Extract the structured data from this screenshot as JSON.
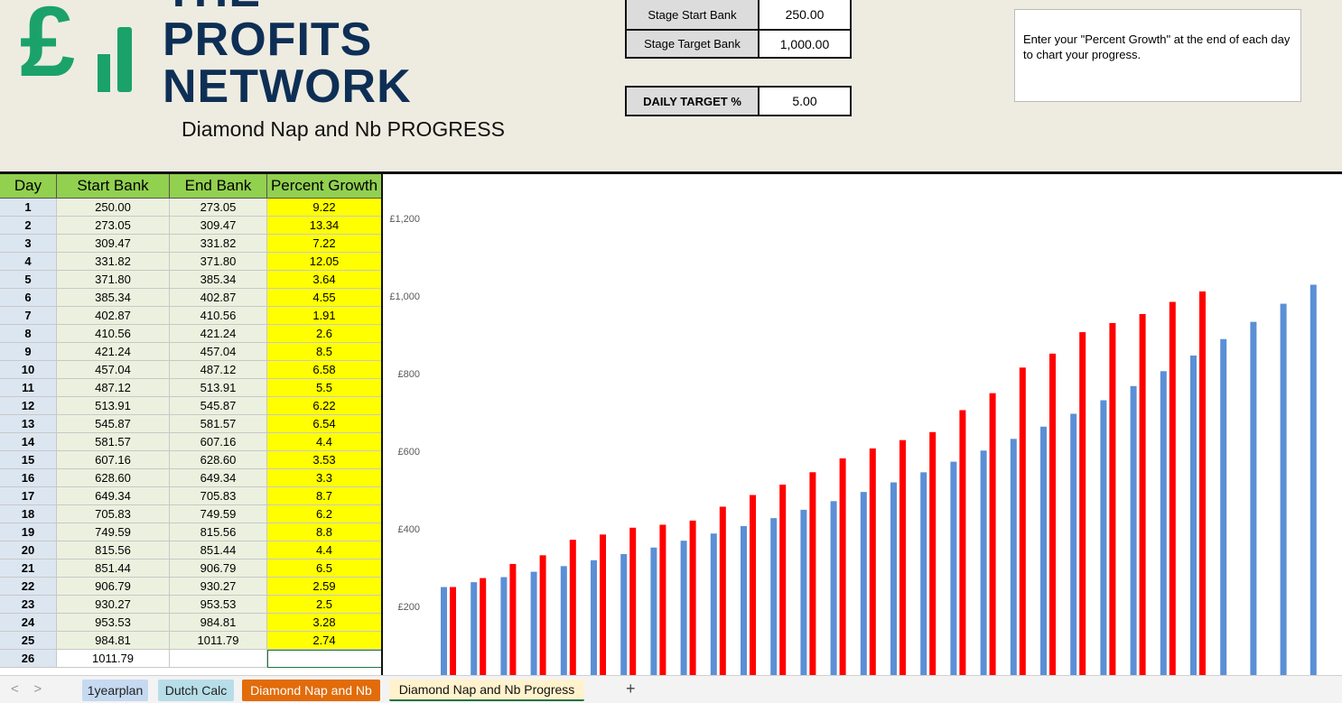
{
  "logo": {
    "mark": "£",
    "line1": "THE",
    "line2": "PROFITS",
    "line3": "NETWORK"
  },
  "sheet_title": "Diamond Nap and Nb PROGRESS",
  "settings": [
    {
      "label": "Stage Start Bank",
      "value": "250.00"
    },
    {
      "label": "Stage Target Bank",
      "value": "1,000.00"
    },
    {
      "label": "DAILY TARGET %",
      "value": "5.00"
    }
  ],
  "note": "Enter your \"Percent Growth\" at the end of each day to chart your progress.",
  "table": {
    "headers": [
      "Day",
      "Start Bank",
      "End Bank",
      "Percent Growth"
    ],
    "rows": [
      [
        "1",
        "250.00",
        "273.05",
        "9.22"
      ],
      [
        "2",
        "273.05",
        "309.47",
        "13.34"
      ],
      [
        "3",
        "309.47",
        "331.82",
        "7.22"
      ],
      [
        "4",
        "331.82",
        "371.80",
        "12.05"
      ],
      [
        "5",
        "371.80",
        "385.34",
        "3.64"
      ],
      [
        "6",
        "385.34",
        "402.87",
        "4.55"
      ],
      [
        "7",
        "402.87",
        "410.56",
        "1.91"
      ],
      [
        "8",
        "410.56",
        "421.24",
        "2.6"
      ],
      [
        "9",
        "421.24",
        "457.04",
        "8.5"
      ],
      [
        "10",
        "457.04",
        "487.12",
        "6.58"
      ],
      [
        "11",
        "487.12",
        "513.91",
        "5.5"
      ],
      [
        "12",
        "513.91",
        "545.87",
        "6.22"
      ],
      [
        "13",
        "545.87",
        "581.57",
        "6.54"
      ],
      [
        "14",
        "581.57",
        "607.16",
        "4.4"
      ],
      [
        "15",
        "607.16",
        "628.60",
        "3.53"
      ],
      [
        "16",
        "628.60",
        "649.34",
        "3.3"
      ],
      [
        "17",
        "649.34",
        "705.83",
        "8.7"
      ],
      [
        "18",
        "705.83",
        "749.59",
        "6.2"
      ],
      [
        "19",
        "749.59",
        "815.56",
        "8.8"
      ],
      [
        "20",
        "815.56",
        "851.44",
        "4.4"
      ],
      [
        "21",
        "851.44",
        "906.79",
        "6.5"
      ],
      [
        "22",
        "906.79",
        "930.27",
        "2.59"
      ],
      [
        "23",
        "930.27",
        "953.53",
        "2.5"
      ],
      [
        "24",
        "953.53",
        "984.81",
        "3.28"
      ],
      [
        "25",
        "984.81",
        "1011.79",
        "2.74"
      ],
      [
        "26",
        "1011.79"
      ]
    ]
  },
  "chart_data": {
    "type": "bar",
    "ylim": [
      0,
      1200
    ],
    "yticks": [
      {
        "value": 200,
        "label": "£200"
      },
      {
        "value": 400,
        "label": "£400"
      },
      {
        "value": 600,
        "label": "£600"
      },
      {
        "value": 800,
        "label": "£800"
      },
      {
        "value": 1000,
        "label": "£1,000"
      },
      {
        "value": 1200,
        "label": "£1,200"
      }
    ],
    "series": [
      {
        "color": "#5b8fd6",
        "values": [
          250,
          262.5,
          275.6,
          289.4,
          303.9,
          319.1,
          335,
          351.8,
          369.4,
          387.9,
          407.2,
          427.6,
          449,
          471.4,
          495,
          519.7,
          545.7,
          573,
          601.7,
          631.8,
          663.3,
          696.5,
          731.3,
          767.9,
          806.3,
          846.6,
          889,
          933.4,
          980.1,
          1029.1
        ]
      },
      {
        "color": "#ff0000",
        "values": [
          250,
          273.05,
          309.47,
          331.82,
          371.8,
          385.34,
          402.87,
          410.56,
          421.24,
          457.04,
          487.12,
          513.91,
          545.87,
          581.57,
          607.16,
          628.6,
          649.34,
          705.83,
          749.59,
          815.56,
          851.44,
          906.79,
          930.27,
          953.53,
          984.81,
          1011.79,
          null,
          null,
          null,
          null
        ]
      }
    ]
  },
  "tabs": [
    "1yearplan",
    "Dutch Calc",
    "Diamond Nap and Nb",
    "Diamond Nap and Nb Progress"
  ],
  "add_tab": "+"
}
